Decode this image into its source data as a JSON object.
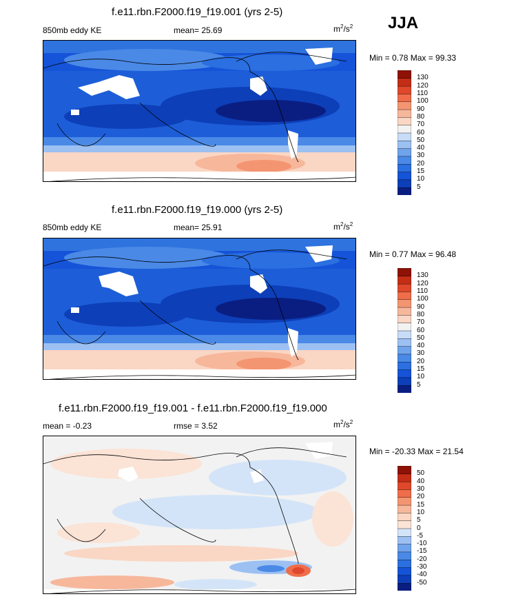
{
  "season": "JJA",
  "panels": [
    {
      "title": "f.e11.rbn.F2000.f19_f19.001 (yrs 2-5)",
      "left_label": "850mb eddy KE",
      "mid_label": "mean=  25.69",
      "units": "m",
      "units_sup1": "2",
      "units_mid": "/s",
      "units_sup2": "2",
      "minmax": "Min =   0.78 Max =  99.33"
    },
    {
      "title": "f.e11.rbn.F2000.f19_f19.000 (yrs 2-5)",
      "left_label": "850mb eddy KE",
      "mid_label": "mean=  25.91",
      "units": "m",
      "units_sup1": "2",
      "units_mid": "/s",
      "units_sup2": "2",
      "minmax": "Min =   0.77 Max =  96.48"
    },
    {
      "title": "f.e11.rbn.F2000.f19_f19.001 - f.e11.rbn.F2000.f19_f19.000",
      "left_label": "mean =  -0.23",
      "mid_label": "rmse =   3.52",
      "units": "m",
      "units_sup1": "2",
      "units_mid": "/s",
      "units_sup2": "2",
      "minmax": "Min = -20.33 Max =  21.54"
    }
  ],
  "chart_data": [
    {
      "type": "heatmap",
      "title": "f.e11.rbn.F2000.f19_f19.001 (yrs 2-5)",
      "variable": "850mb eddy KE",
      "units": "m2/s2",
      "mean": 25.69,
      "min": 0.78,
      "max": 99.33,
      "colorbar_levels": [
        5,
        10,
        15,
        20,
        30,
        40,
        50,
        60,
        70,
        80,
        90,
        100,
        110,
        120,
        130
      ],
      "colorbar_colors": [
        "#0a1e82",
        "#0d3fb8",
        "#1553d8",
        "#2b6fe0",
        "#4a89e6",
        "#6fa3ec",
        "#9cc0f2",
        "#c9dcf7",
        "#f2f2f2",
        "#fad6c4",
        "#f7b79b",
        "#f49572",
        "#ef6d4a",
        "#e0482b",
        "#c42d16",
        "#8e1205"
      ]
    },
    {
      "type": "heatmap",
      "title": "f.e11.rbn.F2000.f19_f19.000 (yrs 2-5)",
      "variable": "850mb eddy KE",
      "units": "m2/s2",
      "mean": 25.91,
      "min": 0.77,
      "max": 96.48,
      "colorbar_levels": [
        5,
        10,
        15,
        20,
        30,
        40,
        50,
        60,
        70,
        80,
        90,
        100,
        110,
        120,
        130
      ],
      "colorbar_colors": [
        "#0a1e82",
        "#0d3fb8",
        "#1553d8",
        "#2b6fe0",
        "#4a89e6",
        "#6fa3ec",
        "#9cc0f2",
        "#c9dcf7",
        "#f2f2f2",
        "#fad6c4",
        "#f7b79b",
        "#f49572",
        "#ef6d4a",
        "#e0482b",
        "#c42d16",
        "#8e1205"
      ]
    },
    {
      "type": "heatmap",
      "title": "f.e11.rbn.F2000.f19_f19.001 - f.e11.rbn.F2000.f19_f19.000",
      "units": "m2/s2",
      "mean": -0.23,
      "rmse": 3.52,
      "min": -20.33,
      "max": 21.54,
      "colorbar_levels": [
        -50,
        -40,
        -30,
        -20,
        -15,
        -10,
        -5,
        0,
        5,
        10,
        15,
        20,
        30,
        40,
        50
      ],
      "colorbar_colors": [
        "#0a1e82",
        "#0d3fb8",
        "#1553d8",
        "#2b6fe0",
        "#4a89e6",
        "#6fa3ec",
        "#9cc0f2",
        "#d4e4f8",
        "#fbe3d6",
        "#fad6c4",
        "#f7b79b",
        "#f49572",
        "#ef6d4a",
        "#e0482b",
        "#c42d16",
        "#8e1205"
      ]
    }
  ]
}
